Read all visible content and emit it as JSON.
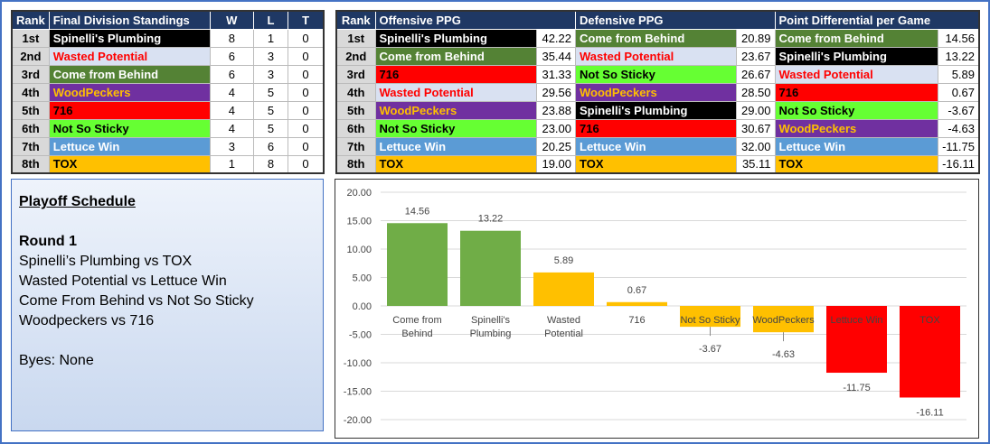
{
  "colors": {
    "header": "#1f3864",
    "frame": "#4472c4"
  },
  "teams": {
    "Spinelli's Plumbing": {
      "bg": "#000000",
      "fg": "#ffffff"
    },
    "Wasted Potential": {
      "bg": "#d9e1f2",
      "fg": "#ff0000"
    },
    "Come from Behind": {
      "bg": "#548235",
      "fg": "#ffffff"
    },
    "WoodPeckers": {
      "bg": "#7030a0",
      "fg": "#ffc000"
    },
    "716": {
      "bg": "#ff0000",
      "fg": "#000000"
    },
    "Not So Sticky": {
      "bg": "#66ff33",
      "fg": "#000000"
    },
    "Lettuce Win": {
      "bg": "#5b9bd5",
      "fg": "#ffffff"
    },
    "TOX": {
      "bg": "#ffc000",
      "fg": "#000000"
    }
  },
  "standings": {
    "headers": [
      "Rank",
      "Final Division Standings",
      "W",
      "L",
      "T"
    ],
    "rows": [
      [
        "1st",
        "Spinelli's Plumbing",
        "8",
        "1",
        "0"
      ],
      [
        "2nd",
        "Wasted Potential",
        "6",
        "3",
        "0"
      ],
      [
        "3rd",
        "Come from Behind",
        "6",
        "3",
        "0"
      ],
      [
        "4th",
        "WoodPeckers",
        "4",
        "5",
        "0"
      ],
      [
        "5th",
        "716",
        "4",
        "5",
        "0"
      ],
      [
        "6th",
        "Not So Sticky",
        "4",
        "5",
        "0"
      ],
      [
        "7th",
        "Lettuce Win",
        "3",
        "6",
        "0"
      ],
      [
        "8th",
        "TOX",
        "1",
        "8",
        "0"
      ]
    ]
  },
  "stats": {
    "headers": [
      "Rank",
      "Offensive PPG",
      "Defensive PPG",
      "Point Differential per Game"
    ],
    "rows": [
      [
        "1st",
        "Spinelli's Plumbing",
        "42.22",
        "Come from Behind",
        "20.89",
        "Come from Behind",
        "14.56"
      ],
      [
        "2nd",
        "Come from Behind",
        "35.44",
        "Wasted Potential",
        "23.67",
        "Spinelli's Plumbing",
        "13.22"
      ],
      [
        "3rd",
        "716",
        "31.33",
        "Not So Sticky",
        "26.67",
        "Wasted Potential",
        "5.89"
      ],
      [
        "4th",
        "Wasted Potential",
        "29.56",
        "WoodPeckers",
        "28.50",
        "716",
        "0.67"
      ],
      [
        "5th",
        "WoodPeckers",
        "23.88",
        "Spinelli's Plumbing",
        "29.00",
        "Not So Sticky",
        "-3.67"
      ],
      [
        "6th",
        "Not So Sticky",
        "23.00",
        "716",
        "30.67",
        "WoodPeckers",
        "-4.63"
      ],
      [
        "7th",
        "Lettuce Win",
        "20.25",
        "Lettuce Win",
        "32.00",
        "Lettuce Win",
        "-11.75"
      ],
      [
        "8th",
        "TOX",
        "19.00",
        "TOX",
        "35.11",
        "TOX",
        "-16.11"
      ]
    ]
  },
  "playoff": {
    "title": "Playoff Schedule",
    "round": "Round 1",
    "matchups": [
      "Spinelli’s Plumbing vs TOX",
      "Wasted Potential vs Lettuce Win",
      "Come From Behind vs Not So Sticky",
      "Woodpeckers vs 716"
    ],
    "byes": "Byes: None"
  },
  "chart_data": {
    "type": "bar",
    "categories": [
      "Come from Behind",
      "Spinelli's Plumbing",
      "Wasted Potential",
      "716",
      "Not So Sticky",
      "WoodPeckers",
      "Lettuce Win",
      "TOX"
    ],
    "values": [
      14.56,
      13.22,
      5.89,
      0.67,
      -3.67,
      -4.63,
      -11.75,
      -16.11
    ],
    "labels": [
      "14.56",
      "13.22",
      "5.89",
      "0.67",
      "-3.67",
      "-4.63",
      "-11.75",
      "-16.11"
    ],
    "bar_colors": [
      "#70ad47",
      "#70ad47",
      "#ffc000",
      "#ffc000",
      "#ffc000",
      "#ffc000",
      "#ff0000",
      "#ff0000"
    ],
    "ylim": [
      -20,
      20
    ],
    "yticks": [
      "20.00",
      "15.00",
      "10.00",
      "5.00",
      "0.00",
      "-5.00",
      "-10.00",
      "-15.00",
      "-20.00"
    ],
    "grid": true
  }
}
